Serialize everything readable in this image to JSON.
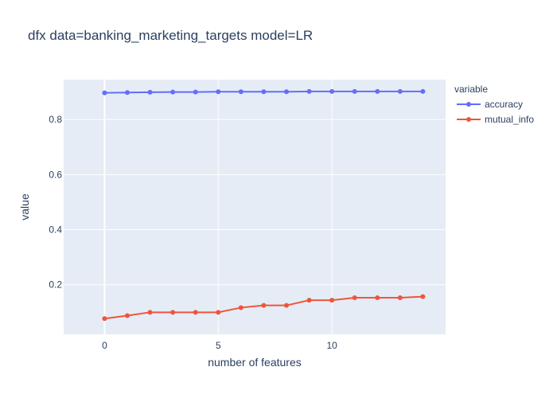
{
  "chart_data": {
    "type": "line",
    "title": "dfx data=banking_marketing_targets model=LR",
    "xlabel": "number of features",
    "ylabel": "value",
    "x": [
      0,
      1,
      2,
      3,
      4,
      5,
      6,
      7,
      8,
      9,
      10,
      11,
      12,
      13,
      14
    ],
    "xlim": [
      -1.8,
      15.0
    ],
    "ylim": [
      0.02,
      0.945
    ],
    "x_ticks": [
      "0",
      "5",
      "10"
    ],
    "x_tick_values": [
      0,
      5,
      10
    ],
    "y_ticks": [
      "0.2",
      "0.4",
      "0.6",
      "0.8"
    ],
    "y_tick_values": [
      0.2,
      0.4,
      0.6,
      0.8
    ],
    "grid": true,
    "legend": {
      "title": "variable",
      "position": "top-right"
    },
    "series": [
      {
        "name": "accuracy",
        "color": "#636efa",
        "values": [
          0.897,
          0.898,
          0.899,
          0.9,
          0.9,
          0.901,
          0.901,
          0.901,
          0.901,
          0.902,
          0.902,
          0.902,
          0.902,
          0.902,
          0.902
        ]
      },
      {
        "name": "mutual_info",
        "color": "#ef553b",
        "values": [
          0.077,
          0.088,
          0.1,
          0.1,
          0.1,
          0.1,
          0.117,
          0.125,
          0.125,
          0.144,
          0.144,
          0.153,
          0.153,
          0.153,
          0.157
        ]
      }
    ]
  }
}
